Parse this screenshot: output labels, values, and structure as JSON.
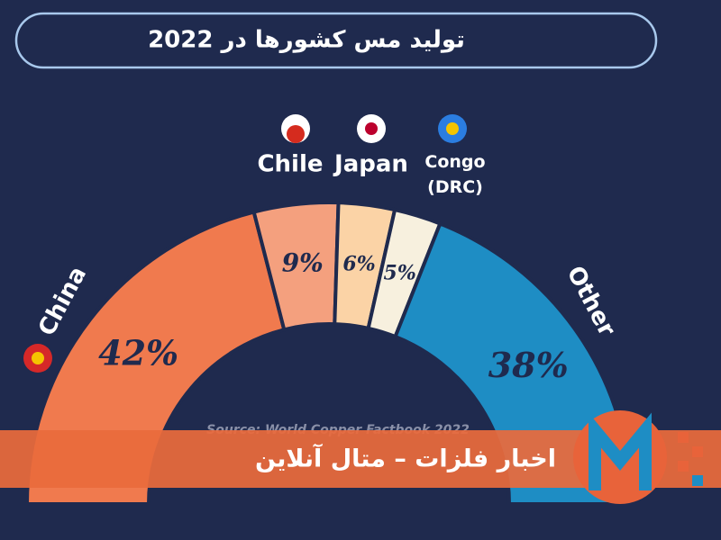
{
  "chart_data": {
    "type": "pie",
    "title": "تولید مس کشورها در 2022",
    "categories": [
      "China",
      "Chile",
      "Japan",
      "Congo (DRC)",
      "Other"
    ],
    "values": [
      42,
      9,
      6,
      5,
      38
    ],
    "value_labels": [
      "42%",
      "9%",
      "6%",
      "5%",
      "38%"
    ],
    "colors": [
      "#f07a4e",
      "#f4a07e",
      "#fbd3a6",
      "#f7f0de",
      "#1e8dc4"
    ],
    "source": "Source: World Copper Factbook 2022"
  },
  "banner": {
    "text": "اخبار فلزات – متال آنلاین"
  }
}
